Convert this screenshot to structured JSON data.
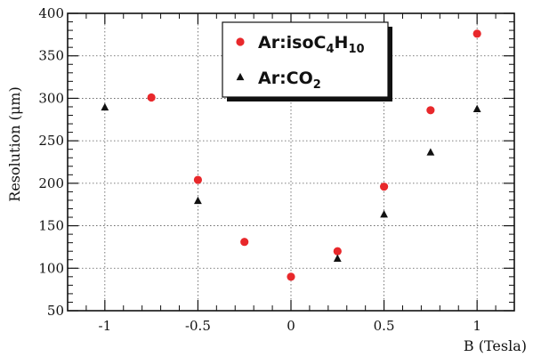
{
  "chart_data": {
    "type": "scatter",
    "xlabel": "B (Tesla)",
    "ylabel": "Resolution (μm)",
    "xlim": [
      -1.2,
      1.2
    ],
    "ylim": [
      50,
      400
    ],
    "xticks": [
      -1,
      -0.5,
      0,
      0.5,
      1
    ],
    "xtick_labels": [
      "-1",
      "-0.5",
      "0",
      "0.5",
      "1"
    ],
    "yticks": [
      50,
      100,
      150,
      200,
      250,
      300,
      350,
      400
    ],
    "ytick_labels": [
      "50",
      "100",
      "150",
      "200",
      "250",
      "300",
      "350",
      "400"
    ],
    "grid": true,
    "legend_position": "top-right",
    "series": [
      {
        "name": "Ar:isoC4H10",
        "legend_parts": [
          {
            "text": "Ar:isoC",
            "sub": false
          },
          {
            "text": "4",
            "sub": true
          },
          {
            "text": "H",
            "sub": false
          },
          {
            "text": "10",
            "sub": true
          }
        ],
        "marker": "circle",
        "color": "#e8282b",
        "x": [
          -0.75,
          -0.5,
          -0.25,
          0,
          0.25,
          0.5,
          0.75,
          1
        ],
        "y": [
          301,
          204,
          131,
          90,
          120,
          196,
          286,
          376
        ]
      },
      {
        "name": "Ar:CO2",
        "legend_parts": [
          {
            "text": "Ar:CO",
            "sub": false
          },
          {
            "text": "2",
            "sub": true
          }
        ],
        "marker": "triangle",
        "color": "#111111",
        "x": [
          -1,
          -0.5,
          0.25,
          0.5,
          0.75,
          1
        ],
        "y": [
          289,
          179,
          111,
          163,
          236,
          287
        ]
      }
    ]
  }
}
